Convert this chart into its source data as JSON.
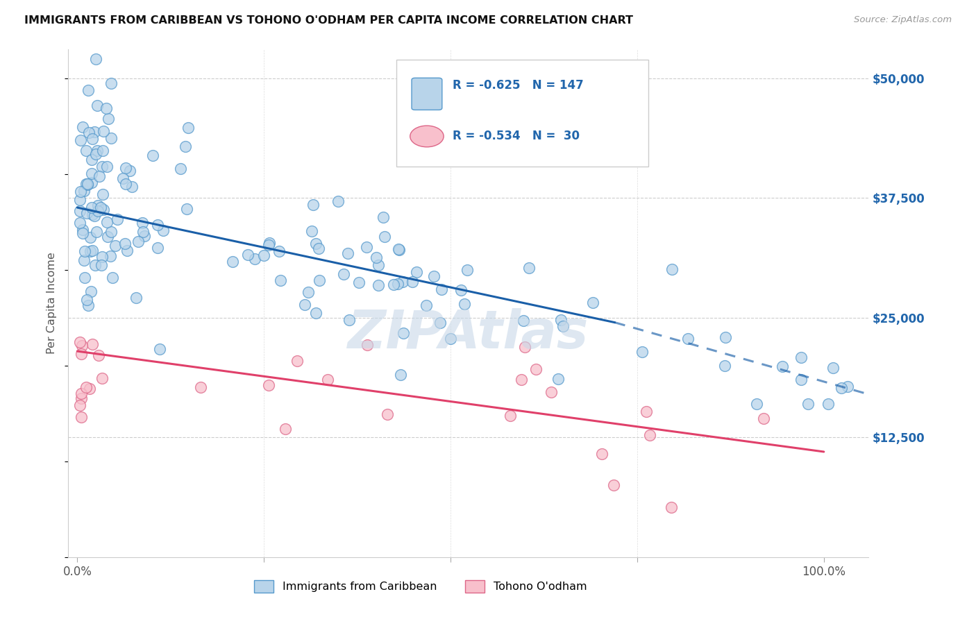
{
  "title": "IMMIGRANTS FROM CARIBBEAN VS TOHONO O'ODHAM PER CAPITA INCOME CORRELATION CHART",
  "source": "Source: ZipAtlas.com",
  "ylabel": "Per Capita Income",
  "ytick_values": [
    12500,
    25000,
    37500,
    50000
  ],
  "ytick_labels": [
    "$12,500",
    "$25,000",
    "$37,500",
    "$50,000"
  ],
  "blue_R": "-0.625",
  "blue_N": "147",
  "pink_R": "-0.534",
  "pink_N": "30",
  "blue_fill": "#b8d4ea",
  "blue_edge": "#5599cc",
  "pink_fill": "#f8c0cc",
  "pink_edge": "#dd6688",
  "blue_line_color": "#1a5fa8",
  "pink_line_color": "#e0406a",
  "label_color": "#2166ac",
  "watermark_color": "#d0dde8",
  "blue_solid": [
    0.0,
    36500,
    0.72,
    24500
  ],
  "blue_dashed": [
    0.72,
    24500,
    1.06,
    17000
  ],
  "pink_solid": [
    0.0,
    21500,
    1.0,
    11000
  ]
}
